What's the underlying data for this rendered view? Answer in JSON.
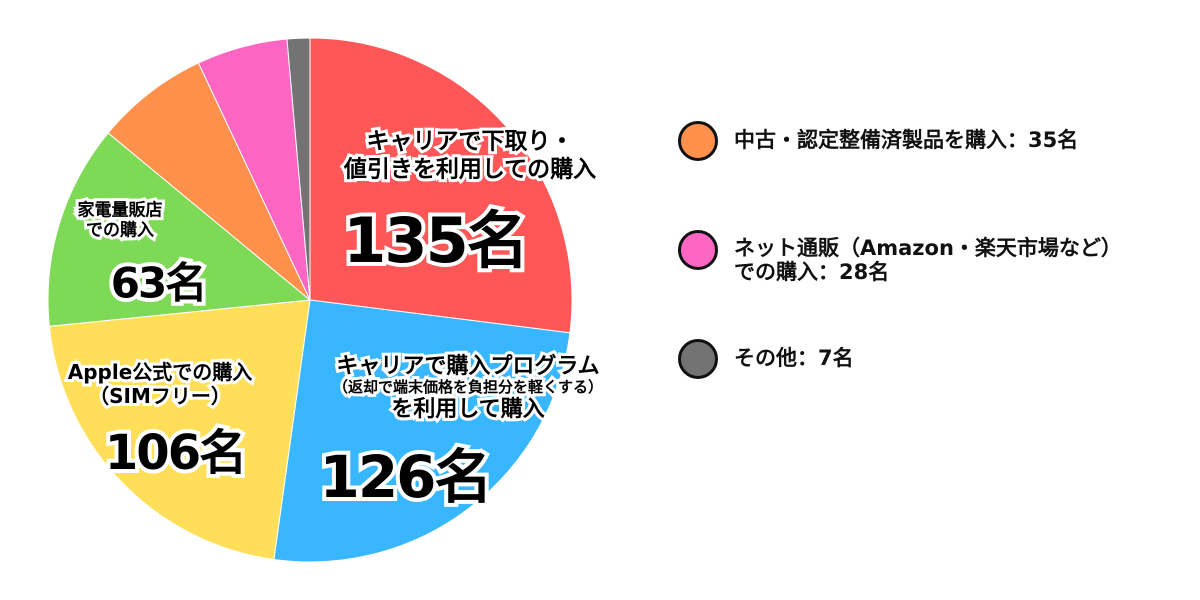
{
  "chart_data": {
    "type": "pie",
    "start": "top",
    "direction": "clockwise",
    "legend_position": "right",
    "unit": "名",
    "slices": [
      {
        "label": [
          "キャリアで下取り・",
          "値引きを利用しての購入"
        ],
        "value": 135,
        "value_label": "135名",
        "color": "#FF5757"
      },
      {
        "label": [
          "キャリアで購入プログラム",
          "（返却で端末価格を負担分を軽くする）",
          "を利用して購入"
        ],
        "value": 126,
        "value_label": "126名",
        "color": "#38B6FF"
      },
      {
        "label": [
          "Apple公式での購入",
          "（SIMフリー）"
        ],
        "value": 106,
        "value_label": "106名",
        "color": "#FFDE59"
      },
      {
        "label": [
          "家電量販店",
          "での購入"
        ],
        "value": 63,
        "value_label": "63名",
        "color": "#7ED957"
      },
      {
        "label": [
          "中古・認定整備済製品を購入：35名"
        ],
        "value": 35,
        "color": "#FF914D"
      },
      {
        "label": [
          "ネット通販（Amazon・楽天市場など）",
          "での購入：28名"
        ],
        "value": 28,
        "color": "#FF66C4"
      },
      {
        "label": [
          "その他：7名"
        ],
        "value": 7,
        "color": "#737373"
      }
    ]
  }
}
